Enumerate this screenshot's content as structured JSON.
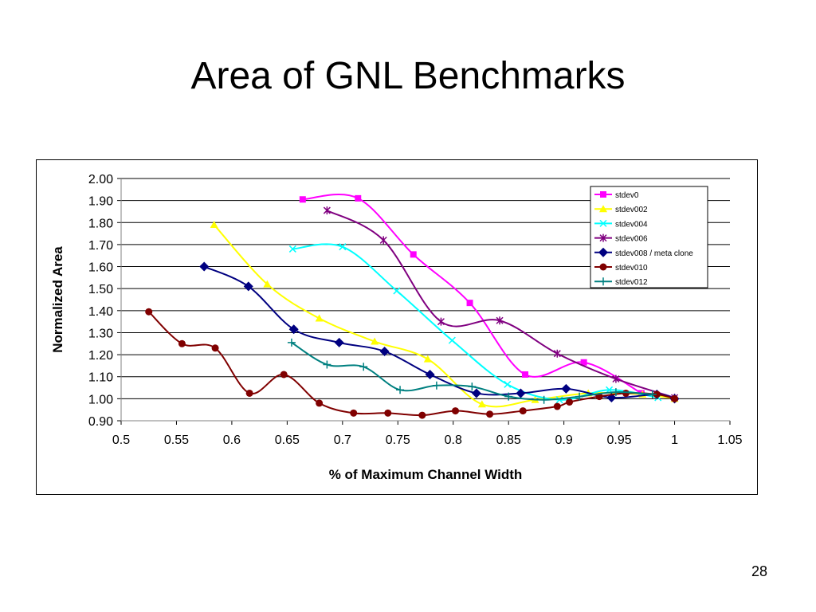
{
  "slide": {
    "title": "Area of GNL Benchmarks",
    "page_number": "28"
  },
  "chart_data": {
    "type": "line",
    "title": "",
    "xlabel": "% of Maximum Channel Width",
    "ylabel": "Normalized Area",
    "xlim": [
      0.5,
      1.05
    ],
    "ylim": [
      0.9,
      2.0
    ],
    "x_ticks": [
      "0.5",
      "0.55",
      "0.6",
      "0.65",
      "0.7",
      "0.75",
      "0.8",
      "0.85",
      "0.9",
      "0.95",
      "1",
      "1.05"
    ],
    "y_ticks": [
      "0.90",
      "1.00",
      "1.10",
      "1.20",
      "1.30",
      "1.40",
      "1.50",
      "1.60",
      "1.70",
      "1.80",
      "1.90",
      "2.00"
    ],
    "grid": "horizontal",
    "legend_position": "top-right",
    "series": [
      {
        "name": "stdev0",
        "color": "#ff00ff",
        "marker": "square",
        "x": [
          0.664,
          0.714,
          0.764,
          0.815,
          0.865,
          0.918,
          0.97
        ],
        "y": [
          1.905,
          1.91,
          1.655,
          1.435,
          1.11,
          1.165,
          1.025
        ]
      },
      {
        "name": "stdev002",
        "color": "#ffff00",
        "marker": "triangle",
        "x": [
          0.584,
          0.632,
          0.679,
          0.729,
          0.777,
          0.826,
          0.874,
          0.922,
          0.971,
          1.0
        ],
        "y": [
          1.79,
          1.52,
          1.365,
          1.26,
          1.18,
          0.975,
          0.995,
          1.025,
          1.02,
          1.0
        ]
      },
      {
        "name": "stdev004",
        "color": "#00ffff",
        "marker": "x",
        "x": [
          0.655,
          0.7,
          0.749,
          0.799,
          0.849,
          0.896,
          0.941,
          0.985
        ],
        "y": [
          1.68,
          1.69,
          1.49,
          1.265,
          1.065,
          0.995,
          1.04,
          1.005
        ]
      },
      {
        "name": "stdev006",
        "color": "#800080",
        "marker": "star",
        "x": [
          0.686,
          0.737,
          0.789,
          0.842,
          0.894,
          0.947,
          1.0
        ],
        "y": [
          1.855,
          1.72,
          1.35,
          1.355,
          1.205,
          1.09,
          1.005
        ]
      },
      {
        "name": "stdev008 / meta clone",
        "color": "#000080",
        "marker": "diamond",
        "x": [
          0.575,
          0.615,
          0.656,
          0.697,
          0.738,
          0.779,
          0.821,
          0.861,
          0.902,
          0.943,
          0.984,
          1.0
        ],
        "y": [
          1.6,
          1.51,
          1.315,
          1.255,
          1.215,
          1.11,
          1.025,
          1.025,
          1.045,
          1.005,
          1.02,
          1.0
        ]
      },
      {
        "name": "stdev010",
        "color": "#800000",
        "marker": "circle",
        "x": [
          0.525,
          0.555,
          0.585,
          0.616,
          0.647,
          0.679,
          0.71,
          0.741,
          0.772,
          0.802,
          0.833,
          0.863,
          0.894,
          0.905,
          0.932,
          0.956,
          0.984,
          1.0
        ],
        "y": [
          1.395,
          1.25,
          1.23,
          1.025,
          1.11,
          0.98,
          0.935,
          0.935,
          0.925,
          0.945,
          0.93,
          0.945,
          0.965,
          0.985,
          1.01,
          1.025,
          1.02,
          1.0
        ]
      },
      {
        "name": "stdev012",
        "color": "#008080",
        "marker": "plus",
        "x": [
          0.654,
          0.686,
          0.719,
          0.752,
          0.785,
          0.817,
          0.85,
          0.882,
          0.914,
          0.947,
          0.98
        ],
        "y": [
          1.255,
          1.155,
          1.145,
          1.04,
          1.06,
          1.055,
          1.01,
          0.995,
          1.01,
          1.03,
          1.02
        ]
      }
    ]
  }
}
